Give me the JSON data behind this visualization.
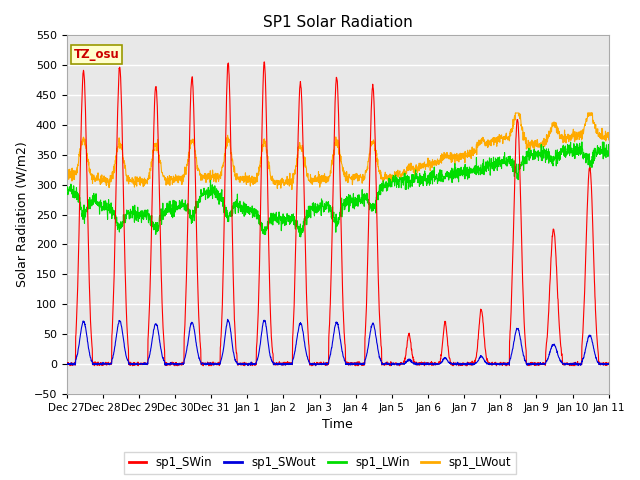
{
  "title": "SP1 Solar Radiation",
  "xlabel": "Time",
  "ylabel": "Solar Radiation (W/m2)",
  "ylim": [
    -50,
    550
  ],
  "colors": {
    "sp1_SWin": "#ff0000",
    "sp1_SWout": "#0000dd",
    "sp1_LWin": "#00dd00",
    "sp1_LWout": "#ffaa00"
  },
  "tz_label": "TZ_osu",
  "tz_box_color": "#ffffcc",
  "tz_text_color": "#cc0000",
  "legend_entries": [
    "sp1_SWin",
    "sp1_SWout",
    "sp1_LWin",
    "sp1_LWout"
  ],
  "x_tick_labels": [
    "Dec 27",
    "Dec 28",
    "Dec 29",
    "Dec 30",
    "Dec 31",
    "Jan 1",
    "Jan 2",
    "Jan 3",
    "Jan 4",
    "Jan 5",
    "Jan 6",
    "Jan 7",
    "Jan 8",
    "Jan 9",
    "Jan 10",
    "Jan 11"
  ],
  "num_days": 15,
  "pts_per_day": 144,
  "fig_bg": "#ffffff",
  "plot_bg": "#e8e8e8",
  "grid_color": "#ffffff",
  "spine_color": "#aaaaaa"
}
